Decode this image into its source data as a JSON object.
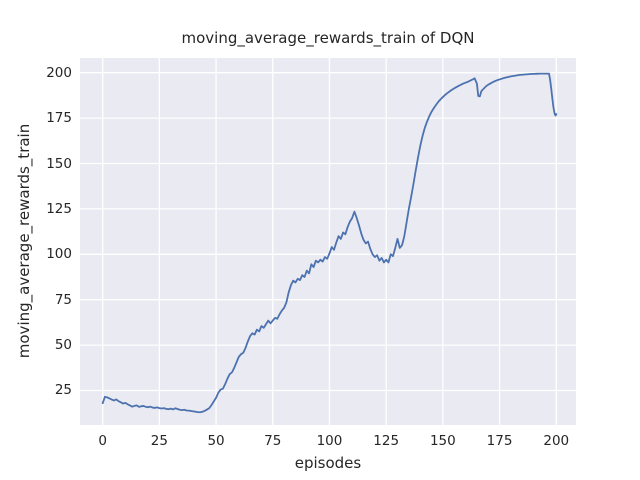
{
  "figure": {
    "background_color": "#ffffff",
    "plot_background_color": "#eaeaf2",
    "grid_color": "#ffffff",
    "text_color": "#262626"
  },
  "chart_data": {
    "type": "line",
    "title": "moving_average_rewards_train of DQN",
    "xlabel": "episodes",
    "ylabel": "moving_average_rewards_train",
    "grid": true,
    "legend_position": "none",
    "xlim": [
      -10,
      208.7
    ],
    "ylim": [
      6,
      208.1
    ],
    "x_ticks": [
      0,
      25,
      50,
      75,
      100,
      125,
      150,
      175,
      200
    ],
    "y_ticks": [
      25,
      50,
      75,
      100,
      125,
      150,
      175,
      200
    ],
    "series": [
      {
        "name": "moving_average_rewards_train",
        "color": "#4c72b0",
        "line_width": 1.8,
        "points": [
          [
            0,
            18
          ],
          [
            1,
            21.5
          ],
          [
            2,
            21.2
          ],
          [
            3,
            20.6
          ],
          [
            4,
            20
          ],
          [
            5,
            19.5
          ],
          [
            6,
            20.1
          ],
          [
            7,
            19.1
          ],
          [
            8,
            18.5
          ],
          [
            9,
            17.8
          ],
          [
            10,
            18.2
          ],
          [
            11,
            17.4
          ],
          [
            12,
            16.8
          ],
          [
            13,
            16.1
          ],
          [
            14,
            16.5
          ],
          [
            15,
            16.8
          ],
          [
            16,
            16
          ],
          [
            17,
            16.3
          ],
          [
            18,
            16.5
          ],
          [
            19,
            16
          ],
          [
            20,
            15.8
          ],
          [
            21,
            16.1
          ],
          [
            22,
            15.6
          ],
          [
            23,
            15.4
          ],
          [
            24,
            15.7
          ],
          [
            25,
            15.3
          ],
          [
            26,
            15.1
          ],
          [
            27,
            15.3
          ],
          [
            28,
            14.9
          ],
          [
            29,
            14.7
          ],
          [
            30,
            15
          ],
          [
            31,
            14.6
          ],
          [
            32,
            15.2
          ],
          [
            33,
            14.8
          ],
          [
            34,
            14.4
          ],
          [
            35,
            14.2
          ],
          [
            36,
            14.4
          ],
          [
            37,
            14
          ],
          [
            38,
            13.9
          ],
          [
            39,
            13.7
          ],
          [
            40,
            13.5
          ],
          [
            41,
            13.3
          ],
          [
            42,
            13.1
          ],
          [
            43,
            13
          ],
          [
            44,
            13.3
          ],
          [
            45,
            13.8
          ],
          [
            46,
            14.5
          ],
          [
            47,
            15.3
          ],
          [
            48,
            17
          ],
          [
            49,
            19
          ],
          [
            50,
            21
          ],
          [
            51,
            23.8
          ],
          [
            52,
            25.5
          ],
          [
            53,
            26
          ],
          [
            54,
            28.5
          ],
          [
            55,
            31.5
          ],
          [
            56,
            34
          ],
          [
            57,
            35
          ],
          [
            58,
            37.5
          ],
          [
            59,
            40.5
          ],
          [
            60,
            43.5
          ],
          [
            61,
            45
          ],
          [
            62,
            45.8
          ],
          [
            63,
            48.5
          ],
          [
            64,
            52
          ],
          [
            65,
            55
          ],
          [
            66,
            56.5
          ],
          [
            67,
            55.8
          ],
          [
            68,
            58.5
          ],
          [
            69,
            57.5
          ],
          [
            70,
            60.5
          ],
          [
            71,
            59.5
          ],
          [
            72,
            61.5
          ],
          [
            73,
            63.5
          ],
          [
            74,
            62
          ],
          [
            75,
            63.5
          ],
          [
            76,
            65
          ],
          [
            77,
            64.5
          ],
          [
            78,
            67
          ],
          [
            79,
            69
          ],
          [
            80,
            70.5
          ],
          [
            81,
            73.5
          ],
          [
            82,
            79
          ],
          [
            83,
            83
          ],
          [
            84,
            85.5
          ],
          [
            85,
            84.5
          ],
          [
            86,
            86.5
          ],
          [
            87,
            85.8
          ],
          [
            88,
            88.5
          ],
          [
            89,
            87.5
          ],
          [
            90,
            91
          ],
          [
            91,
            89.5
          ],
          [
            92,
            94.5
          ],
          [
            93,
            93
          ],
          [
            94,
            96.5
          ],
          [
            95,
            95.5
          ],
          [
            96,
            97
          ],
          [
            97,
            96
          ],
          [
            98,
            98.5
          ],
          [
            99,
            97.5
          ],
          [
            100,
            100.5
          ],
          [
            101,
            104
          ],
          [
            102,
            102.5
          ],
          [
            103,
            106.5
          ],
          [
            104,
            110
          ],
          [
            105,
            108.5
          ],
          [
            106,
            112
          ],
          [
            107,
            111
          ],
          [
            108,
            115
          ],
          [
            109,
            118
          ],
          [
            110,
            120
          ],
          [
            111,
            123.5
          ],
          [
            112,
            120
          ],
          [
            113,
            116
          ],
          [
            114,
            111.5
          ],
          [
            115,
            108
          ],
          [
            116,
            106
          ],
          [
            117,
            107
          ],
          [
            118,
            103
          ],
          [
            119,
            100
          ],
          [
            120,
            98.5
          ],
          [
            121,
            99.5
          ],
          [
            122,
            96.5
          ],
          [
            123,
            98
          ],
          [
            124,
            95.5
          ],
          [
            125,
            97
          ],
          [
            126,
            95.5
          ],
          [
            127,
            100
          ],
          [
            128,
            99
          ],
          [
            129,
            103.5
          ],
          [
            130,
            108.5
          ],
          [
            131,
            103.5
          ],
          [
            132,
            105
          ],
          [
            133,
            110
          ],
          [
            134,
            117.5
          ],
          [
            135,
            125
          ],
          [
            136,
            131.5
          ],
          [
            137,
            138.5
          ],
          [
            138,
            146
          ],
          [
            139,
            153
          ],
          [
            140,
            159.5
          ],
          [
            141,
            165
          ],
          [
            142,
            169.5
          ],
          [
            143,
            173
          ],
          [
            144,
            176
          ],
          [
            145,
            178.5
          ],
          [
            146,
            180.5
          ],
          [
            147,
            182.3
          ],
          [
            148,
            184
          ],
          [
            149,
            185.4
          ],
          [
            150,
            186.6
          ],
          [
            151,
            187.8
          ],
          [
            152,
            188.8
          ],
          [
            153,
            189.7
          ],
          [
            154,
            190.6
          ],
          [
            155,
            191.4
          ],
          [
            156,
            192.1
          ],
          [
            157,
            192.8
          ],
          [
            158,
            193.4
          ],
          [
            159,
            194
          ],
          [
            160,
            194.5
          ],
          [
            161,
            195
          ],
          [
            162,
            195.6
          ],
          [
            163,
            196.2
          ],
          [
            164,
            196.9
          ],
          [
            165,
            194
          ],
          [
            165.6,
            187.2
          ],
          [
            166.3,
            187
          ],
          [
            167,
            189.9
          ],
          [
            168,
            191.2
          ],
          [
            169,
            192.5
          ],
          [
            170,
            193.4
          ],
          [
            171,
            194.1
          ],
          [
            172,
            194.8
          ],
          [
            173,
            195.4
          ],
          [
            174,
            195.9
          ],
          [
            175,
            196.3
          ],
          [
            176,
            196.7
          ],
          [
            177,
            197.1
          ],
          [
            178,
            197.4
          ],
          [
            179,
            197.7
          ],
          [
            180,
            198
          ],
          [
            181,
            198.2
          ],
          [
            182,
            198.4
          ],
          [
            183,
            198.6
          ],
          [
            184,
            198.8
          ],
          [
            185,
            198.9
          ],
          [
            186,
            199
          ],
          [
            187,
            199.1
          ],
          [
            188,
            199.2
          ],
          [
            189,
            199.3
          ],
          [
            190,
            199.35
          ],
          [
            191,
            199.4
          ],
          [
            192,
            199.45
          ],
          [
            193,
            199.5
          ],
          [
            194,
            199.5
          ],
          [
            195,
            199.5
          ],
          [
            196,
            199.5
          ],
          [
            196.8,
            199.5
          ],
          [
            197.3,
            196
          ],
          [
            197.8,
            191
          ],
          [
            198.3,
            185.5
          ],
          [
            198.8,
            180.5
          ],
          [
            199.3,
            177.3
          ],
          [
            199.7,
            176.4
          ],
          [
            200,
            177.2
          ]
        ]
      }
    ]
  }
}
